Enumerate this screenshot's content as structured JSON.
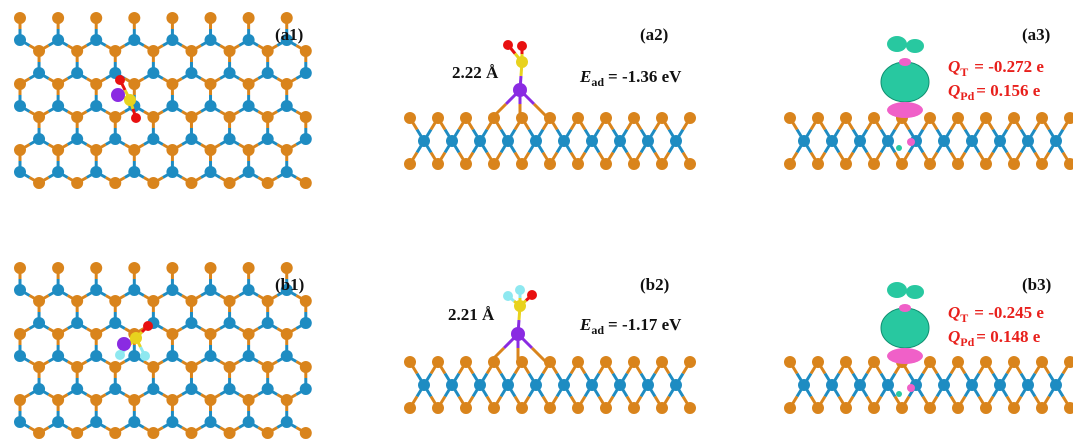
{
  "panels": [
    {
      "label": "(a1)"
    },
    {
      "label": "(a2)",
      "distance": "2.22 Å",
      "energy": {
        "symbol": "E",
        "sub": "ad",
        "text": "= -1.36 eV"
      }
    },
    {
      "label": "(a3)",
      "charges": [
        {
          "symbol": "Q",
          "sub": "T",
          "text": "= -0.272 e"
        },
        {
          "symbol": "Q",
          "sub": "Pd",
          "text": "= 0.156 e"
        }
      ]
    },
    {
      "label": "(b1)"
    },
    {
      "label": "(b2)",
      "distance": "2.21 Å",
      "energy": {
        "symbol": "E",
        "sub": "ad",
        "text": "= -1.17 eV"
      }
    },
    {
      "label": "(b3)",
      "charges": [
        {
          "symbol": "Q",
          "sub": "T",
          "text": "= -0.245 e"
        },
        {
          "symbol": "Q",
          "sub": "Pd",
          "text": "= 0.148 e"
        }
      ]
    }
  ]
}
